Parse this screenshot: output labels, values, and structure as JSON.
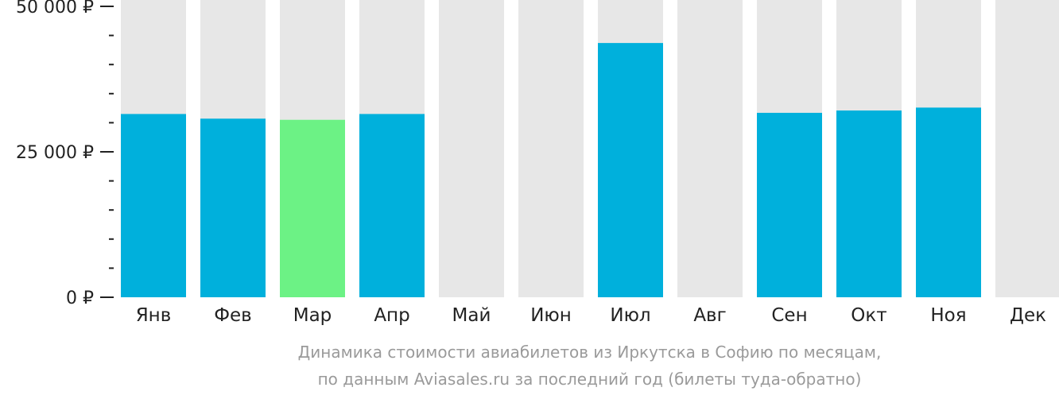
{
  "chart_data": {
    "type": "bar",
    "categories": [
      "Янв",
      "Фев",
      "Мар",
      "Апр",
      "Май",
      "Июн",
      "Июл",
      "Авг",
      "Сен",
      "Окт",
      "Ноя",
      "Дек"
    ],
    "values": [
      31500,
      30700,
      30500,
      31500,
      null,
      null,
      43700,
      null,
      31700,
      32100,
      32600,
      null
    ],
    "highlight_index": 2,
    "ylim": [
      0,
      52000
    ],
    "yticks": [
      {
        "value": 0,
        "label": "0 ₽"
      },
      {
        "value": 25000,
        "label": "25 000 ₽"
      },
      {
        "value": 50000,
        "label": "50 000 ₽"
      }
    ],
    "minor_tick_step": 5000,
    "grid": false,
    "colors": {
      "bar": "#00b0dc",
      "highlight": "#6cf285",
      "track": "#e7e7e7",
      "axis": "#222222",
      "caption": "#9a9a9a"
    }
  },
  "caption": {
    "line1": "Динамика стоимости авиабилетов из Иркутска в Софию по месяцам,",
    "line2": "по данным Aviasales.ru за последний год (билеты туда-обратно)"
  }
}
